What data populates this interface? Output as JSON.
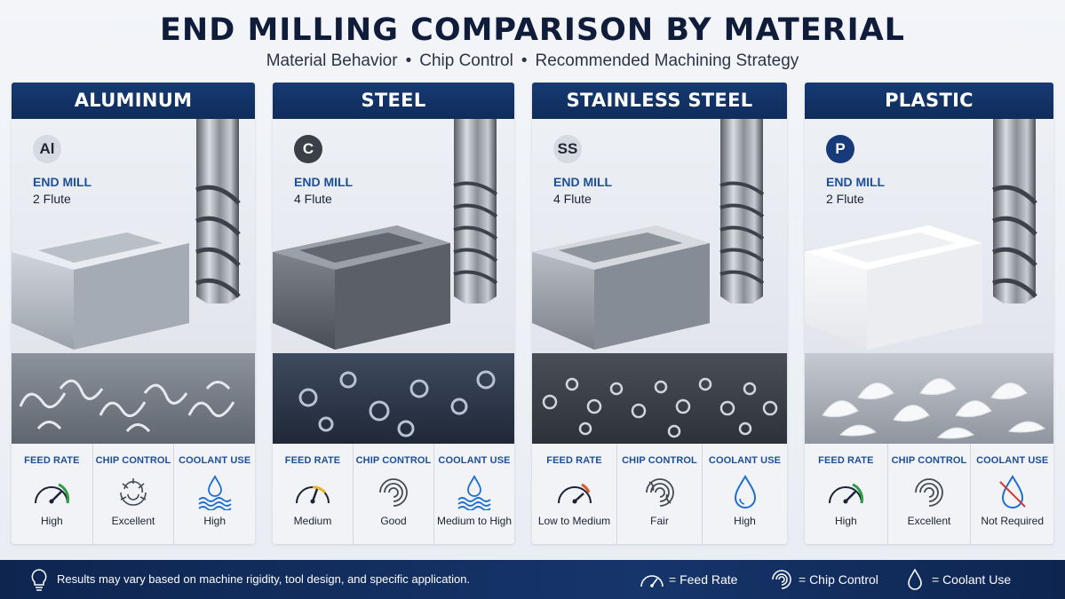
{
  "title": "END MILLING COMPARISON BY MATERIAL",
  "subtitle": {
    "part1": "Material Behavior",
    "part2": "Chip Control",
    "part3": "Recommended Machining Strategy",
    "separator": "•"
  },
  "metric_labels": {
    "feed": "FEED RATE",
    "chip": "CHIP CONTROL",
    "coolant": "COOLANT USE"
  },
  "cards": [
    {
      "name": "ALUMINUM",
      "symbol": "Al",
      "tool": "END MILL",
      "flutes": "2 Flute",
      "feed": "High",
      "chip": "Excellent",
      "coolant": "High"
    },
    {
      "name": "STEEL",
      "symbol": "C",
      "tool": "END MILL",
      "flutes": "4 Flute",
      "feed": "Medium",
      "chip": "Good",
      "coolant": "Medium to High"
    },
    {
      "name": "STAINLESS STEEL",
      "symbol": "SS",
      "tool": "END MILL",
      "flutes": "4 Flute",
      "feed": "Low to Medium",
      "chip": "Fair",
      "coolant": "High"
    },
    {
      "name": "PLASTIC",
      "symbol": "P",
      "tool": "END MILL",
      "flutes": "2 Flute",
      "feed": "High",
      "chip": "Excellent",
      "coolant": "Not Required"
    }
  ],
  "colors": {
    "navy": "#0f2c5a",
    "accent_blue": "#1d4f98",
    "gauge_high": "#2e9e44",
    "gauge_medium": "#e6b422",
    "gauge_low": "#e0572a",
    "no_coolant": "#d9342b"
  },
  "footer": {
    "note": "Results may vary based on machine rigidity, tool design, and specific application.",
    "legend_feed": "= Feed Rate",
    "legend_chip": "= Chip Control",
    "legend_coolant": "= Coolant Use"
  }
}
